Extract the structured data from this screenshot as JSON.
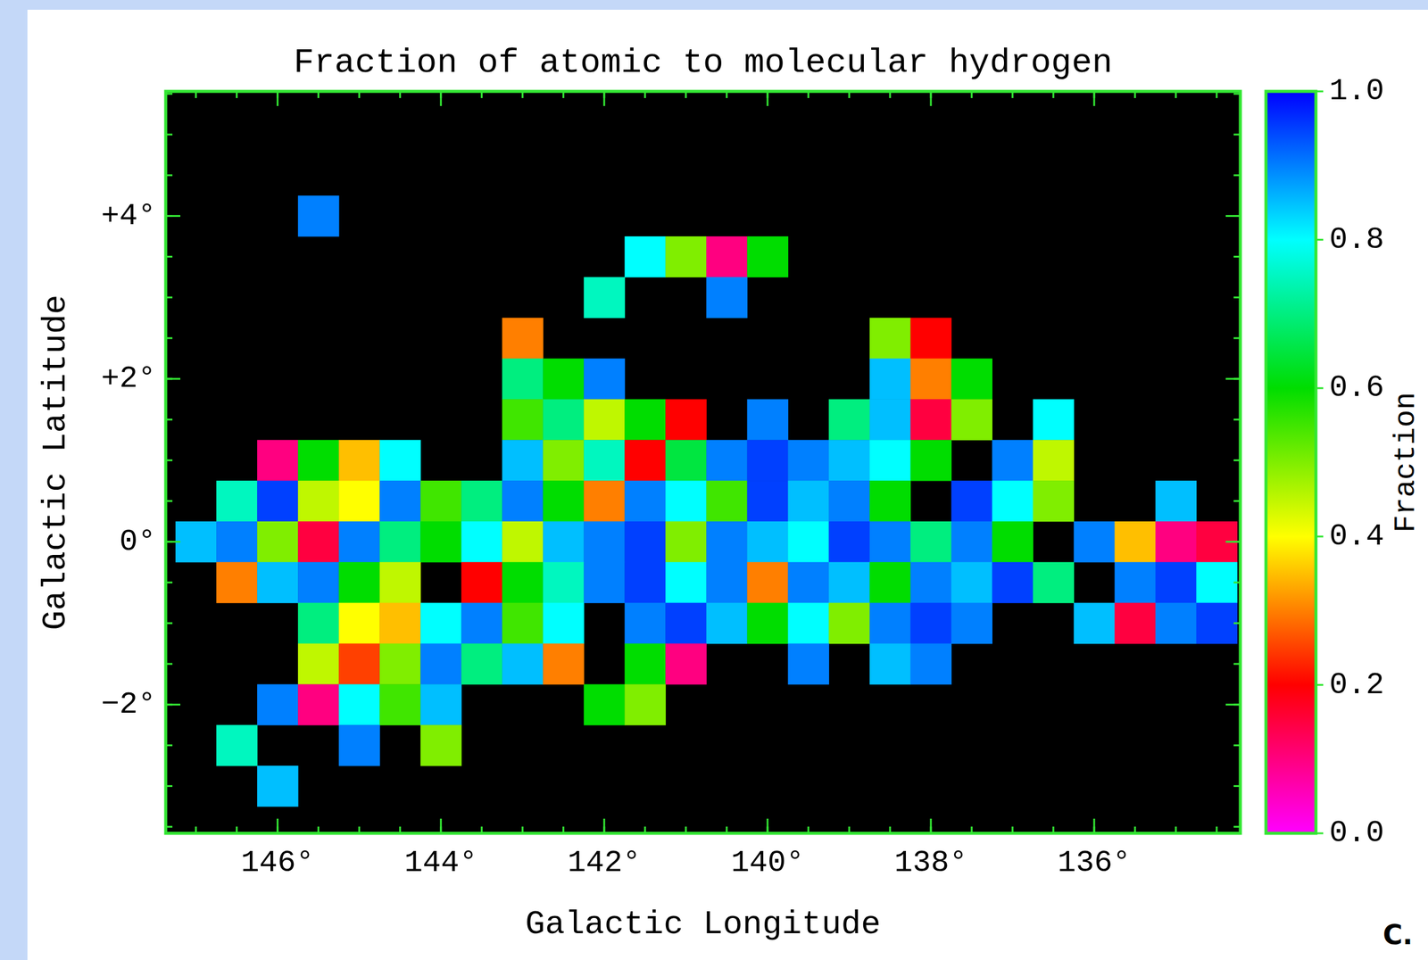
{
  "chart_data": {
    "type": "heatmap",
    "title": "Fraction of atomic to molecular hydrogen",
    "x_label": "Galactic Longitude",
    "y_label": "Galactic Latitude",
    "xlim": [
      147.37,
      134.21
    ],
    "ylim": [
      -3.58,
      5.53
    ],
    "xticks": [
      {
        "value": 146,
        "label": "146°"
      },
      {
        "value": 144,
        "label": "144°"
      },
      {
        "value": 142,
        "label": "142°"
      },
      {
        "value": 140,
        "label": "140°"
      },
      {
        "value": 138,
        "label": "138°"
      },
      {
        "value": 136,
        "label": "136°"
      }
    ],
    "yticks": [
      {
        "value": -2,
        "label": "−2°"
      },
      {
        "value": 0,
        "label": "0°"
      },
      {
        "value": 2,
        "label": "+2°"
      },
      {
        "value": 4,
        "label": "+4°"
      }
    ],
    "grid": false,
    "colorbar": {
      "range": [
        0,
        1
      ],
      "label": "Fraction",
      "ticks": [
        {
          "value": 0,
          "label": "0.0"
        },
        0.2,
        0.4,
        0.6,
        0.8,
        {
          "value": 1,
          "label": "1.0"
        }
      ]
    },
    "annotations": [
      "C."
    ],
    "cells": [
      [
        145.5,
        4,
        0.9
      ],
      [
        141.5,
        3.5,
        0.8
      ],
      [
        141,
        3.5,
        0.5
      ],
      [
        140.5,
        3.5,
        0.1
      ],
      [
        140,
        3.5,
        0.6
      ],
      [
        142,
        3,
        0.75
      ],
      [
        140.5,
        3,
        0.9
      ],
      [
        143,
        2.5,
        0.3
      ],
      [
        138.5,
        2.5,
        0.5
      ],
      [
        138,
        2.5,
        0.2
      ],
      [
        143,
        2,
        0.7
      ],
      [
        142.5,
        2,
        0.6
      ],
      [
        142,
        2,
        0.9
      ],
      [
        138.5,
        2,
        0.85
      ],
      [
        138,
        2,
        0.3
      ],
      [
        137.5,
        2,
        0.6
      ],
      [
        143,
        1.5,
        0.55
      ],
      [
        142.5,
        1.5,
        0.7
      ],
      [
        142,
        1.5,
        0.45
      ],
      [
        141.5,
        1.5,
        0.6
      ],
      [
        141,
        1.5,
        0.2
      ],
      [
        140,
        1.5,
        0.9
      ],
      [
        139,
        1.5,
        0.7
      ],
      [
        138.5,
        1.5,
        0.85
      ],
      [
        138,
        1.5,
        0.15
      ],
      [
        137.5,
        1.5,
        0.5
      ],
      [
        136.5,
        1.5,
        0.8
      ],
      [
        146,
        1,
        0.1
      ],
      [
        145.5,
        1,
        0.6
      ],
      [
        145,
        1,
        0.35
      ],
      [
        144.5,
        1,
        0.8
      ],
      [
        143,
        1,
        0.85
      ],
      [
        142.5,
        1,
        0.5
      ],
      [
        142,
        1,
        0.75
      ],
      [
        141.5,
        1,
        0.2
      ],
      [
        141,
        1,
        0.65
      ],
      [
        140.5,
        1,
        0.9
      ],
      [
        140,
        1,
        0.95
      ],
      [
        139.5,
        1,
        0.9
      ],
      [
        139,
        1,
        0.85
      ],
      [
        138.5,
        1,
        0.8
      ],
      [
        138,
        1,
        0.6
      ],
      [
        137,
        1,
        0.9
      ],
      [
        136.5,
        1,
        0.45
      ],
      [
        146.5,
        0.5,
        0.75
      ],
      [
        146,
        0.5,
        0.95
      ],
      [
        145.5,
        0.5,
        0.45
      ],
      [
        145,
        0.5,
        0.4
      ],
      [
        144.5,
        0.5,
        0.9
      ],
      [
        144,
        0.5,
        0.55
      ],
      [
        143.5,
        0.5,
        0.7
      ],
      [
        143,
        0.5,
        0.9
      ],
      [
        142.5,
        0.5,
        0.6
      ],
      [
        142,
        0.5,
        0.3
      ],
      [
        141.5,
        0.5,
        0.9
      ],
      [
        141,
        0.5,
        0.8
      ],
      [
        140.5,
        0.5,
        0.55
      ],
      [
        140,
        0.5,
        0.95
      ],
      [
        139.5,
        0.5,
        0.85
      ],
      [
        139,
        0.5,
        0.9
      ],
      [
        138.5,
        0.5,
        0.6
      ],
      [
        137.5,
        0.5,
        0.95
      ],
      [
        137,
        0.5,
        0.8
      ],
      [
        136.5,
        0.5,
        0.5
      ],
      [
        135,
        0.5,
        0.85
      ],
      [
        147,
        0,
        0.85
      ],
      [
        146.5,
        0,
        0.9
      ],
      [
        146,
        0,
        0.5
      ],
      [
        145.5,
        0,
        0.15
      ],
      [
        145,
        0,
        0.9
      ],
      [
        144.5,
        0,
        0.7
      ],
      [
        144,
        0,
        0.6
      ],
      [
        143.5,
        0,
        0.8
      ],
      [
        143,
        0,
        0.45
      ],
      [
        142.5,
        0,
        0.85
      ],
      [
        142,
        0,
        0.9
      ],
      [
        141.5,
        0,
        0.95
      ],
      [
        141,
        0,
        0.5
      ],
      [
        140.5,
        0,
        0.9
      ],
      [
        140,
        0,
        0.85
      ],
      [
        139.5,
        0,
        0.8
      ],
      [
        139,
        0,
        0.95
      ],
      [
        138.5,
        0,
        0.9
      ],
      [
        138,
        0,
        0.7
      ],
      [
        137.5,
        0,
        0.9
      ],
      [
        137,
        0,
        0.6
      ],
      [
        136,
        0,
        0.9
      ],
      [
        135.5,
        0,
        0.35
      ],
      [
        135,
        0,
        0.1
      ],
      [
        134.5,
        0,
        0.15
      ],
      [
        146.5,
        -0.5,
        0.3
      ],
      [
        146,
        -0.5,
        0.85
      ],
      [
        145.5,
        -0.5,
        0.9
      ],
      [
        145,
        -0.5,
        0.6
      ],
      [
        144.5,
        -0.5,
        0.45
      ],
      [
        143.5,
        -0.5,
        0.2
      ],
      [
        143,
        -0.5,
        0.6
      ],
      [
        142.5,
        -0.5,
        0.75
      ],
      [
        142,
        -0.5,
        0.9
      ],
      [
        141.5,
        -0.5,
        0.95
      ],
      [
        141,
        -0.5,
        0.8
      ],
      [
        140.5,
        -0.5,
        0.9
      ],
      [
        140,
        -0.5,
        0.3
      ],
      [
        139.5,
        -0.5,
        0.9
      ],
      [
        139,
        -0.5,
        0.85
      ],
      [
        138.5,
        -0.5,
        0.6
      ],
      [
        138,
        -0.5,
        0.9
      ],
      [
        137.5,
        -0.5,
        0.85
      ],
      [
        137,
        -0.5,
        0.95
      ],
      [
        136.5,
        -0.5,
        0.7
      ],
      [
        135.5,
        -0.5,
        0.9
      ],
      [
        135,
        -0.5,
        0.95
      ],
      [
        134.5,
        -0.5,
        0.8
      ],
      [
        145.5,
        -1,
        0.7
      ],
      [
        145,
        -1,
        0.4
      ],
      [
        144.5,
        -1,
        0.35
      ],
      [
        144,
        -1,
        0.8
      ],
      [
        143.5,
        -1,
        0.9
      ],
      [
        143,
        -1,
        0.55
      ],
      [
        142.5,
        -1,
        0.8
      ],
      [
        141.5,
        -1,
        0.9
      ],
      [
        141,
        -1,
        0.95
      ],
      [
        140.5,
        -1,
        0.85
      ],
      [
        140,
        -1,
        0.6
      ],
      [
        139.5,
        -1,
        0.8
      ],
      [
        139,
        -1,
        0.5
      ],
      [
        138.5,
        -1,
        0.9
      ],
      [
        138,
        -1,
        0.95
      ],
      [
        137.5,
        -1,
        0.9
      ],
      [
        136,
        -1,
        0.85
      ],
      [
        135.5,
        -1,
        0.15
      ],
      [
        135,
        -1,
        0.9
      ],
      [
        134.5,
        -1,
        0.95
      ],
      [
        145.5,
        -1.5,
        0.45
      ],
      [
        145,
        -1.5,
        0.25
      ],
      [
        144.5,
        -1.5,
        0.5
      ],
      [
        144,
        -1.5,
        0.9
      ],
      [
        143.5,
        -1.5,
        0.7
      ],
      [
        143,
        -1.5,
        0.85
      ],
      [
        142.5,
        -1.5,
        0.3
      ],
      [
        141.5,
        -1.5,
        0.6
      ],
      [
        141,
        -1.5,
        0.1
      ],
      [
        139.5,
        -1.5,
        0.9
      ],
      [
        138.5,
        -1.5,
        0.85
      ],
      [
        138,
        -1.5,
        0.9
      ],
      [
        146,
        -2,
        0.9
      ],
      [
        145.5,
        -2,
        0.1
      ],
      [
        145,
        -2,
        0.8
      ],
      [
        144.5,
        -2,
        0.55
      ],
      [
        144,
        -2,
        0.85
      ],
      [
        142,
        -2,
        0.6
      ],
      [
        141.5,
        -2,
        0.5
      ],
      [
        146.5,
        -2.5,
        0.75
      ],
      [
        145,
        -2.5,
        0.9
      ],
      [
        144,
        -2.5,
        0.5
      ],
      [
        146,
        -3,
        0.85
      ]
    ]
  }
}
